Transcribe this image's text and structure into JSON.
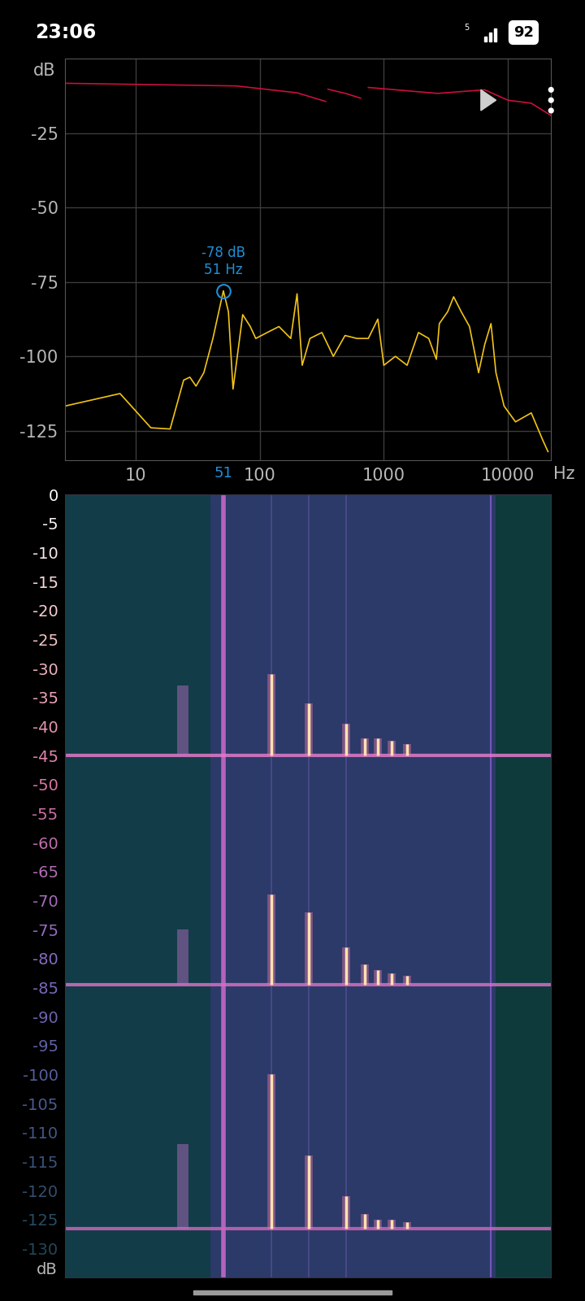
{
  "status_bar": {
    "time": "23:06",
    "wifi": "5",
    "battery": "92"
  },
  "chart_data": [
    {
      "type": "line",
      "log": "x",
      "grid": true,
      "y_label": "dB",
      "x_unit": "Hz",
      "xlim": [
        2.7,
        22000
      ],
      "ylim": [
        -135,
        0
      ],
      "xticks": [
        10,
        100,
        1000,
        10000
      ],
      "yticks": [
        -25,
        -50,
        -75,
        -100,
        -125
      ],
      "series": [
        {
          "color": "#c8103a",
          "x": [
            2.7,
            65,
            200,
            340,
            345,
            355,
            500,
            650,
            660,
            750,
            2700,
            6500,
            10000,
            15400,
            22000
          ],
          "values": [
            -8.3,
            -9.2,
            -11.5,
            -14.4,
            null,
            -10.3,
            -11.8,
            -13.3,
            null,
            -9.7,
            -11.7,
            -10.5,
            -14,
            -15,
            -19
          ]
        },
        {
          "color": "#f2c418",
          "x": [
            2.7,
            7.5,
            13.3,
            19,
            24.4,
            27.4,
            30.7,
            35.5,
            42,
            51,
            56,
            61,
            73,
            84,
            93,
            115,
            143,
            178,
            200,
            220,
            254,
            317,
            392,
            487,
            607,
            750,
            895,
            1000,
            1240,
            1540,
            1900,
            2300,
            2650,
            2800,
            3270,
            3650,
            4200,
            4900,
            5800,
            6500,
            7300,
            8000,
            9300,
            11500,
            15400,
            19000,
            21000
          ],
          "values": [
            -116.7,
            -112.5,
            -124,
            -124.4,
            -108,
            -107,
            -110,
            -105.5,
            -94,
            -78,
            -85,
            -111,
            -86,
            -90,
            -94,
            -92,
            -90,
            -94,
            -79,
            -103,
            -94,
            -92,
            -100,
            -93,
            -94,
            -94,
            -87.5,
            -103,
            -100,
            -103,
            -92,
            -94,
            -101,
            -89,
            -85,
            -80,
            -85,
            -90,
            -105.5,
            -96,
            -89,
            -105.5,
            -116.7,
            -122,
            -119,
            -128,
            -132
          ]
        }
      ],
      "marker": {
        "x": 51,
        "y": -78,
        "labels": [
          "-78 dB",
          "51 Hz"
        ],
        "color": "#1e90d8"
      }
    },
    {
      "type": "spectrogram",
      "log": "x",
      "tick_labels": "y",
      "y_label": "dB",
      "xlim": [
        2.7,
        22000
      ],
      "ylim": [
        -135,
        0
      ],
      "yticks": [
        0,
        -5,
        -10,
        -15,
        -20,
        -25,
        -30,
        -35,
        -40,
        -45,
        -50,
        -55,
        -60,
        -65,
        -70,
        -75,
        -80,
        -85,
        -90,
        -95,
        -100,
        -105,
        -110,
        -115,
        -120,
        -125,
        -130
      ],
      "background": "#2b3a68",
      "regions": [
        {
          "x": [
            2.7,
            40
          ],
          "color": "#123c48"
        },
        {
          "x": [
            8000,
            22000
          ],
          "color": "#0f3a3c"
        }
      ],
      "lines": [
        {
          "x": 51,
          "color": "#c468c8"
        },
        {
          "x": 7300,
          "color": "#7a5cc0"
        },
        {
          "x": 125,
          "color": "#4a4a88"
        },
        {
          "x": 250,
          "color": "#4a4a88"
        },
        {
          "x": 500,
          "color": "#4a4a88"
        }
      ],
      "events": [
        {
          "y": -45,
          "color": "#e27ac8",
          "peaks": {
            "x": [
              125,
              250,
              500,
              700,
              900,
              1150,
              1550
            ],
            "values": [
              -31,
              -36,
              -39.5,
              -42,
              -42,
              -42.5,
              -43
            ]
          },
          "glow": {
            "x": 24,
            "top": -33
          }
        },
        {
          "y": -84.5,
          "color": "#d470c0",
          "peaks": {
            "x": [
              125,
              250,
              500,
              700,
              900,
              1150,
              1550
            ],
            "values": [
              -69,
              -72,
              -78,
              -81,
              -82,
              -82.5,
              -83
            ]
          },
          "glow": {
            "x": 24,
            "top": -75
          }
        },
        {
          "y": -126.5,
          "color": "#c866b8",
          "peaks": {
            "x": [
              125,
              250,
              500,
              700,
              900,
              1150,
              1550
            ],
            "values": [
              -100,
              -114,
              -121,
              -124,
              -125,
              -125,
              -125.5
            ]
          },
          "glow": {
            "x": 24,
            "top": -112
          }
        }
      ]
    }
  ]
}
